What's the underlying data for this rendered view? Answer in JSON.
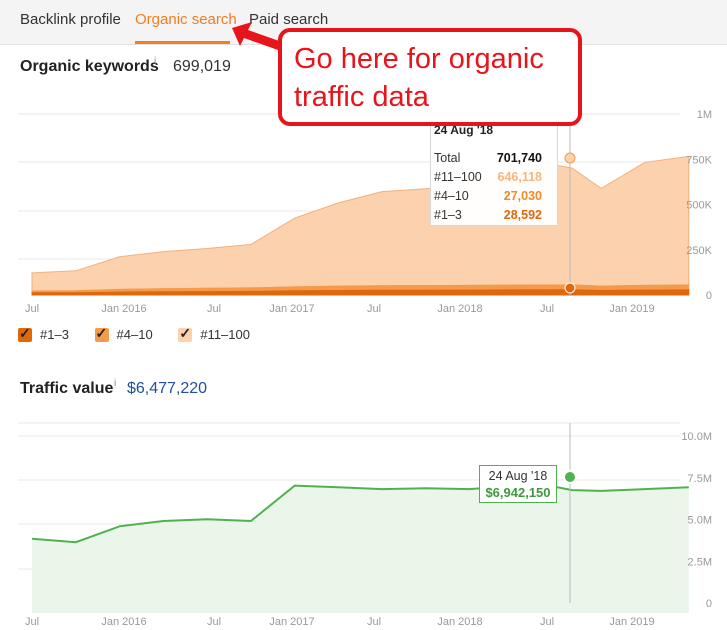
{
  "tabs": [
    {
      "label": "Backlink profile",
      "active": false
    },
    {
      "label": "Organic search",
      "active": true
    },
    {
      "label": "Paid search",
      "active": false
    }
  ],
  "callout": {
    "text": "Go here for organic traffic data",
    "color": "#e8141c"
  },
  "organic": {
    "title": "Organic keywords",
    "info": "i",
    "value": "699,019",
    "legend": [
      {
        "label": "#1–3",
        "color": "#e0670a"
      },
      {
        "label": "#4–10",
        "color": "#f39a4b"
      },
      {
        "label": "#11–100",
        "color": "#fbd2ad"
      }
    ],
    "tooltip": {
      "date": "24 Aug '18",
      "rows": [
        {
          "label": "Total",
          "value": "701,740"
        },
        {
          "label": "#11–100",
          "value": "646,118"
        },
        {
          "label": "#4–10",
          "value": "27,030"
        },
        {
          "label": "#1–3",
          "value": "28,592"
        }
      ]
    }
  },
  "traffic": {
    "title": "Traffic value",
    "info": "i",
    "value": "$6,477,220",
    "tooltip": {
      "date": "24 Aug '18",
      "value": "$6,942,150"
    }
  },
  "chart_data": [
    {
      "type": "area",
      "title": "Organic keywords",
      "x_tick_labels": [
        "Jul",
        "Jan 2016",
        "Jul",
        "Jan 2017",
        "Jul",
        "Jan 2018",
        "Jul",
        "Jan 2019"
      ],
      "y_tick_labels": [
        "1M",
        "750K",
        "500K",
        "250K",
        "0"
      ],
      "ylim": [
        0,
        1000000
      ],
      "x": [
        "2015-07",
        "2015-10",
        "2016-01",
        "2016-04",
        "2016-07",
        "2016-10",
        "2017-01",
        "2017-04",
        "2017-07",
        "2017-10",
        "2018-01",
        "2018-04",
        "2018-07",
        "2018-08",
        "2018-10",
        "2019-01",
        "2019-04"
      ],
      "series": [
        {
          "name": "#11–100",
          "color": "#fbd2ad",
          "values": [
            100000,
            110000,
            180000,
            205000,
            220000,
            240000,
            380000,
            460000,
            520000,
            535000,
            560000,
            615000,
            660000,
            646000,
            540000,
            680000,
            710000
          ]
        },
        {
          "name": "#4–10",
          "color": "#f39a4b",
          "values": [
            10000,
            11000,
            15000,
            17000,
            18000,
            19000,
            22000,
            24000,
            25000,
            25500,
            26000,
            26500,
            27000,
            27030,
            24000,
            26000,
            27000
          ]
        },
        {
          "name": "#1–3",
          "color": "#e0670a",
          "values": [
            12000,
            12500,
            16000,
            18000,
            19000,
            20000,
            23000,
            25000,
            26000,
            26500,
            27000,
            28000,
            28500,
            28592,
            25000,
            27000,
            28000
          ]
        }
      ],
      "grid": true
    },
    {
      "type": "line",
      "title": "Traffic value",
      "x_tick_labels": [
        "Jul",
        "Jan 2016",
        "Jul",
        "Jan 2017",
        "Jul",
        "Jan 2018",
        "Jul",
        "Jan 2019"
      ],
      "y_tick_labels": [
        "10.0M",
        "7.5M",
        "5.0M",
        "2.5M",
        "0"
      ],
      "ylim": [
        0,
        10000000
      ],
      "x": [
        "2015-07",
        "2015-10",
        "2016-01",
        "2016-04",
        "2016-07",
        "2016-10",
        "2017-01",
        "2017-04",
        "2017-07",
        "2017-10",
        "2018-01",
        "2018-04",
        "2018-07",
        "2018-08",
        "2018-10",
        "2019-01",
        "2019-04"
      ],
      "series": [
        {
          "name": "Traffic value",
          "color": "#4fb24f",
          "values": [
            4200000,
            4000000,
            4900000,
            5200000,
            5300000,
            5200000,
            7200000,
            7100000,
            7000000,
            7050000,
            7000000,
            7200000,
            7100000,
            6942150,
            6900000,
            7000000,
            7100000
          ]
        }
      ],
      "grid": true
    }
  ]
}
